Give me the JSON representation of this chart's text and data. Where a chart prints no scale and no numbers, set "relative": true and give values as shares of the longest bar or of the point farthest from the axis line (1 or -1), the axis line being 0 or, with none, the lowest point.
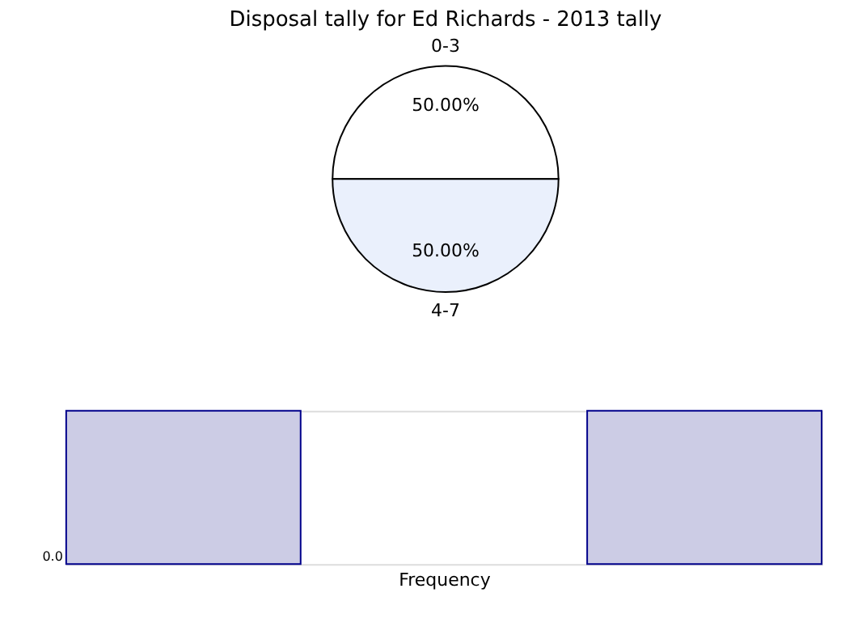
{
  "chart_data": [
    {
      "type": "pie",
      "title": "Disposal tally for Ed Richards - 2013 tally",
      "categories": [
        "0-3",
        "4-7"
      ],
      "values": [
        50,
        50
      ],
      "colors": [
        "#ffffff",
        "#eaf0fc"
      ],
      "value_labels": [
        "50.00%",
        "50.00%"
      ]
    },
    {
      "type": "bar",
      "relative": true,
      "categories": [
        null,
        null
      ],
      "values": [
        1,
        1
      ],
      "color": "#ccccE5",
      "xlabel": "Frequency",
      "annotations": [
        "0.0"
      ]
    }
  ]
}
